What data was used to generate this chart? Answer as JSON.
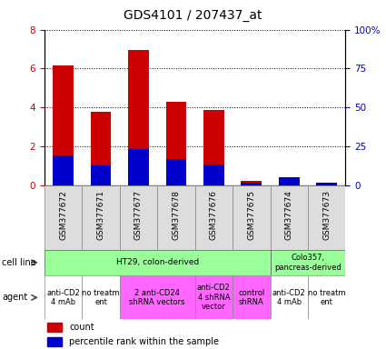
{
  "title": "GDS4101 / 207437_at",
  "samples": [
    "GSM377672",
    "GSM377671",
    "GSM377677",
    "GSM377678",
    "GSM377676",
    "GSM377675",
    "GSM377674",
    "GSM377673"
  ],
  "count_values": [
    6.15,
    3.75,
    6.95,
    4.3,
    3.85,
    0.2,
    0.4,
    0.1
  ],
  "percentile_values": [
    1.5,
    1.0,
    1.85,
    1.35,
    1.05,
    0.1,
    0.4,
    0.1
  ],
  "ylim_left": [
    0,
    8
  ],
  "ylim_right": [
    0,
    100
  ],
  "yticks_left": [
    0,
    2,
    4,
    6,
    8
  ],
  "yticks_right": [
    0,
    25,
    50,
    75,
    100
  ],
  "ytick_labels_right": [
    "0",
    "25",
    "50",
    "75",
    "100%"
  ],
  "count_color": "#cc0000",
  "percentile_color": "#0000cc",
  "tick_color_left": "#cc0000",
  "tick_color_right": "#0000cc",
  "bar_width": 0.55,
  "cell_line_ht29_label": "HT29, colon-derived",
  "cell_line_colo_label": "Colo357,\npancreas-derived",
  "cell_line_color": "#99ff99",
  "agent_groups": [
    {
      "label": "anti-CD2\n4 mAb",
      "start": 0,
      "end": 1,
      "color": "#ffffff"
    },
    {
      "label": "no treatm\nent",
      "start": 1,
      "end": 2,
      "color": "#ffffff"
    },
    {
      "label": "2 anti-CD24\nshRNA vectors",
      "start": 2,
      "end": 4,
      "color": "#ff66ff"
    },
    {
      "label": "anti-CD2\n4 shRNA\nvector",
      "start": 4,
      "end": 5,
      "color": "#ff66ff"
    },
    {
      "label": "control\nshRNA",
      "start": 5,
      "end": 6,
      "color": "#ff66ff"
    },
    {
      "label": "anti-CD2\n4 mAb",
      "start": 6,
      "end": 7,
      "color": "#ffffff"
    },
    {
      "label": "no treatm\nent",
      "start": 7,
      "end": 8,
      "color": "#ffffff"
    }
  ],
  "legend_count_label": "count",
  "legend_pct_label": "percentile rank within the sample",
  "cell_line_label": "cell line",
  "agent_label": "agent",
  "title_fontsize": 10,
  "axis_fontsize": 7.5,
  "sample_fontsize": 6.5,
  "table_fontsize": 6.0,
  "legend_fontsize": 7
}
